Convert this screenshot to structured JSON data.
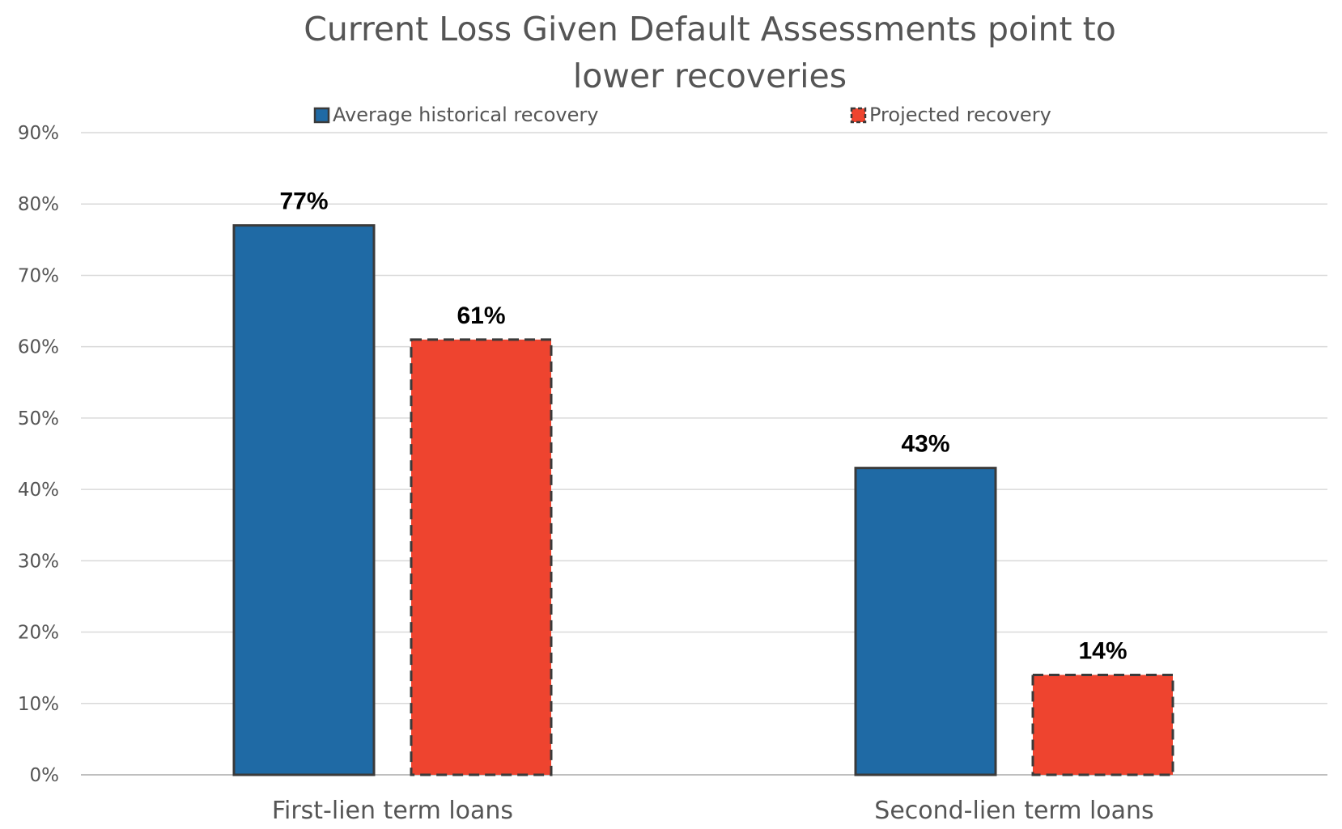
{
  "chart_data": {
    "type": "bar",
    "title": "Current Loss Given Default Assessments point to lower recoveries",
    "title_lines": [
      "Current Loss Given Default Assessments point to",
      "lower recoveries"
    ],
    "xlabel": "",
    "ylabel": "",
    "categories": [
      "First-lien term loans",
      "Second-lien term loans"
    ],
    "series": [
      {
        "name": "Average historical recovery",
        "values": [
          77,
          43
        ],
        "labels": [
          "77%",
          "43%"
        ],
        "color": "#1f6aa5",
        "border": "solid"
      },
      {
        "name": "Projected recovery",
        "values": [
          61,
          14
        ],
        "labels": [
          "61%",
          "14%"
        ],
        "color": "#ee442f",
        "border": "dashed"
      }
    ],
    "ylim": [
      0,
      90
    ],
    "yticks": [
      0,
      10,
      20,
      30,
      40,
      50,
      60,
      70,
      80,
      90
    ],
    "ytick_labels": [
      "0%",
      "10%",
      "20%",
      "30%",
      "40%",
      "50%",
      "60%",
      "70%",
      "80%",
      "90%"
    ],
    "grid": true,
    "legend_position": "top",
    "border_color": "#3a3a3a"
  }
}
